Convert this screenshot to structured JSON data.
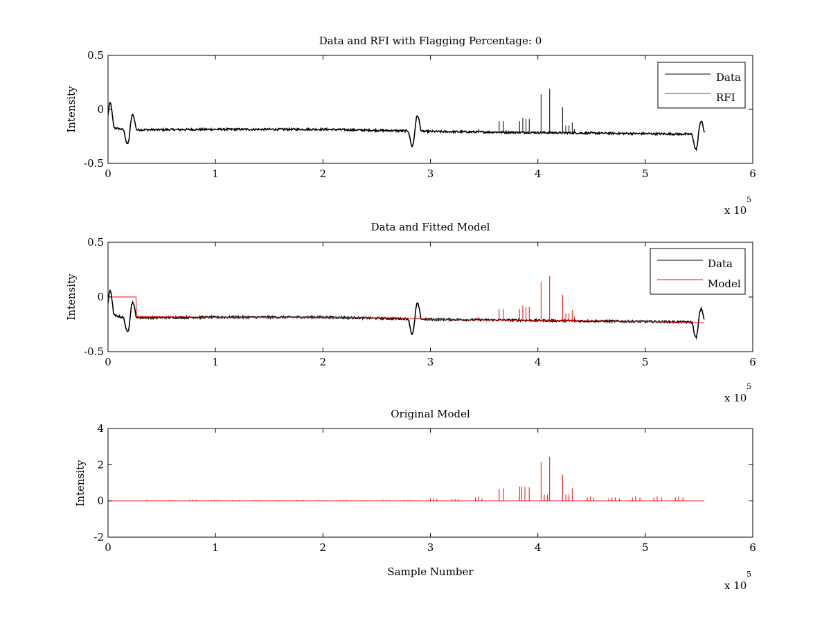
{
  "figure": {
    "background": "#ffffff"
  },
  "chart_data": [
    {
      "type": "line",
      "title": "Data and RFI with Flagging Percentage: 0",
      "xlabel": "",
      "ylabel": "Intensity",
      "xlim": [
        0,
        600000
      ],
      "ylim": [
        -0.5,
        0.5
      ],
      "xticks": [
        "0",
        "1",
        "2",
        "3",
        "4",
        "5",
        "6"
      ],
      "yticks": [
        "-0.5",
        "0",
        "0.5"
      ],
      "xexponent": {
        "base": "x 10",
        "exp": "5"
      },
      "legend": {
        "location": "top-right",
        "entries": [
          {
            "label": "Data",
            "color": "#000000"
          },
          {
            "label": "RFI",
            "color": "#ff0000"
          }
        ]
      },
      "series": [
        {
          "name": "Data",
          "color": "#000000",
          "baseline": [
            [
              0,
              -0.17
            ],
            [
              6000,
              -0.17
            ],
            [
              15000,
              -0.19
            ],
            [
              100000,
              -0.185
            ],
            [
              200000,
              -0.185
            ],
            [
              280000,
              -0.2
            ],
            [
              300000,
              -0.205
            ],
            [
              400000,
              -0.215
            ],
            [
              500000,
              -0.225
            ],
            [
              545000,
              -0.23
            ],
            [
              555000,
              -0.23
            ]
          ],
          "bumps": [
            [
              2000,
              0.06
            ],
            [
              18000,
              -0.32
            ],
            [
              23000,
              -0.05
            ],
            [
              283000,
              -0.34
            ],
            [
              288000,
              -0.06
            ],
            [
              547000,
              -0.37
            ],
            [
              552000,
              -0.11
            ]
          ],
          "spikes": [
            [
              364000,
              -0.11
            ],
            [
              368000,
              -0.11
            ],
            [
              383000,
              -0.11
            ],
            [
              386000,
              -0.08
            ],
            [
              389000,
              -0.09
            ],
            [
              392000,
              -0.09
            ],
            [
              403000,
              0.14
            ],
            [
              411000,
              0.19
            ],
            [
              423000,
              0.02
            ],
            [
              426000,
              -0.15
            ],
            [
              429000,
              -0.15
            ],
            [
              432000,
              -0.12
            ],
            [
              345000,
              -0.18
            ],
            [
              434000,
              -0.18
            ]
          ]
        },
        {
          "name": "RFI",
          "color": "#ff0000",
          "points": []
        }
      ]
    },
    {
      "type": "line",
      "title": "Data and Fitted Model",
      "xlabel": "",
      "ylabel": "Intensity",
      "xlim": [
        0,
        600000
      ],
      "ylim": [
        -0.5,
        0.5
      ],
      "xticks": [
        "0",
        "1",
        "2",
        "3",
        "4",
        "5",
        "6"
      ],
      "yticks": [
        "-0.5",
        "0",
        "0.5"
      ],
      "xexponent": {
        "base": "x 10",
        "exp": "5"
      },
      "legend": {
        "location": "top-right",
        "entries": [
          {
            "label": "Data",
            "color": "#000000"
          },
          {
            "label": "Model",
            "color": "#ff0000"
          }
        ]
      },
      "series": [
        {
          "name": "Data",
          "color": "#000000",
          "baseline": [
            [
              0,
              -0.17
            ],
            [
              6000,
              -0.17
            ],
            [
              15000,
              -0.19
            ],
            [
              100000,
              -0.185
            ],
            [
              200000,
              -0.185
            ],
            [
              280000,
              -0.2
            ],
            [
              300000,
              -0.205
            ],
            [
              400000,
              -0.215
            ],
            [
              500000,
              -0.225
            ],
            [
              545000,
              -0.23
            ],
            [
              555000,
              -0.23
            ]
          ],
          "bumps": [
            [
              2000,
              0.06
            ],
            [
              18000,
              -0.32
            ],
            [
              23000,
              -0.05
            ],
            [
              283000,
              -0.34
            ],
            [
              288000,
              -0.06
            ],
            [
              547000,
              -0.37
            ],
            [
              552000,
              -0.11
            ]
          ],
          "spikes": []
        },
        {
          "name": "Model",
          "color": "#ff0000",
          "baseline": [
            [
              0,
              0.0
            ],
            [
              26000,
              0.0
            ],
            [
              26500,
              -0.18
            ],
            [
              100000,
              -0.185
            ],
            [
              200000,
              -0.185
            ],
            [
              280000,
              -0.195
            ],
            [
              300000,
              -0.205
            ],
            [
              400000,
              -0.215
            ],
            [
              500000,
              -0.225
            ],
            [
              555000,
              -0.235
            ]
          ],
          "bumps": [],
          "spikes": [
            [
              364000,
              -0.11
            ],
            [
              368000,
              -0.11
            ],
            [
              383000,
              -0.11
            ],
            [
              386000,
              -0.08
            ],
            [
              389000,
              -0.09
            ],
            [
              392000,
              -0.09
            ],
            [
              403000,
              0.14
            ],
            [
              411000,
              0.19
            ],
            [
              423000,
              0.02
            ],
            [
              426000,
              -0.15
            ],
            [
              429000,
              -0.15
            ],
            [
              432000,
              -0.12
            ],
            [
              345000,
              -0.18
            ],
            [
              434000,
              -0.18
            ]
          ]
        }
      ]
    },
    {
      "type": "line",
      "title": "Original Model",
      "xlabel": "Sample Number",
      "ylabel": "Intensity",
      "xlim": [
        0,
        600000
      ],
      "ylim": [
        -2,
        4
      ],
      "xticks": [
        "0",
        "1",
        "2",
        "3",
        "4",
        "5",
        "6"
      ],
      "yticks": [
        "-2",
        "0",
        "2",
        "4"
      ],
      "xexponent": {
        "base": "x 10",
        "exp": "5"
      },
      "series": [
        {
          "color": "#ff0000",
          "baseline": [
            [
              0,
              0
            ],
            [
              555000,
              0
            ]
          ],
          "spikes": [
            [
              36000,
              0.05
            ],
            [
              37000,
              0.05
            ],
            [
              56000,
              0.05
            ],
            [
              58000,
              0.05
            ],
            [
              60000,
              0.05
            ],
            [
              76000,
              0.07
            ],
            [
              79000,
              0.07
            ],
            [
              82000,
              0.07
            ],
            [
              96000,
              0.06
            ],
            [
              99000,
              0.06
            ],
            [
              102000,
              0.06
            ],
            [
              116000,
              0.05
            ],
            [
              119000,
              0.05
            ],
            [
              122000,
              0.05
            ],
            [
              136000,
              0.05
            ],
            [
              139000,
              0.05
            ],
            [
              142000,
              0.05
            ],
            [
              156000,
              0.05
            ],
            [
              159000,
              0.05
            ],
            [
              162000,
              0.05
            ],
            [
              176000,
              0.05
            ],
            [
              179000,
              0.05
            ],
            [
              182000,
              0.05
            ],
            [
              196000,
              0.05
            ],
            [
              199000,
              0.05
            ],
            [
              202000,
              0.05
            ],
            [
              216000,
              0.05
            ],
            [
              219000,
              0.05
            ],
            [
              222000,
              0.05
            ],
            [
              236000,
              0.05
            ],
            [
              239000,
              0.05
            ],
            [
              242000,
              0.05
            ],
            [
              256000,
              0.05
            ],
            [
              259000,
              0.05
            ],
            [
              262000,
              0.05
            ],
            [
              276000,
              0.05
            ],
            [
              279000,
              0.05
            ],
            [
              282000,
              0.05
            ],
            [
              300000,
              0.15
            ],
            [
              303000,
              0.15
            ],
            [
              306000,
              0.12
            ],
            [
              320000,
              0.1
            ],
            [
              323000,
              0.1
            ],
            [
              326000,
              0.1
            ],
            [
              342000,
              0.2
            ],
            [
              345000,
              0.25
            ],
            [
              348000,
              0.15
            ],
            [
              364000,
              0.65
            ],
            [
              368000,
              0.7
            ],
            [
              383000,
              0.8
            ],
            [
              385000,
              0.78
            ],
            [
              388000,
              0.75
            ],
            [
              392000,
              0.75
            ],
            [
              403000,
              2.15
            ],
            [
              406000,
              0.35
            ],
            [
              409000,
              0.35
            ],
            [
              411000,
              2.45
            ],
            [
              423000,
              1.45
            ],
            [
              426000,
              0.35
            ],
            [
              429000,
              0.35
            ],
            [
              432000,
              0.7
            ],
            [
              446000,
              0.2
            ],
            [
              449000,
              0.25
            ],
            [
              452000,
              0.2
            ],
            [
              466000,
              0.15
            ],
            [
              469000,
              0.2
            ],
            [
              472000,
              0.2
            ],
            [
              476000,
              0.15
            ],
            [
              488000,
              0.2
            ],
            [
              491000,
              0.25
            ],
            [
              495000,
              0.2
            ],
            [
              508000,
              0.2
            ],
            [
              511000,
              0.25
            ],
            [
              515000,
              0.2
            ],
            [
              528000,
              0.2
            ],
            [
              531000,
              0.25
            ],
            [
              535000,
              0.2
            ]
          ]
        }
      ]
    }
  ]
}
